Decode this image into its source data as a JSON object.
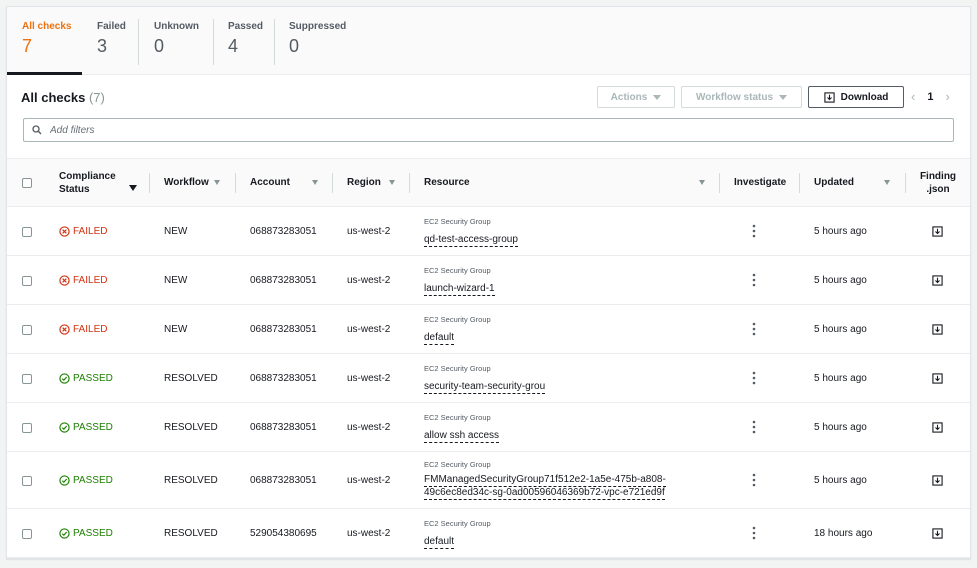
{
  "summary": {
    "tabs": [
      {
        "label": "All checks",
        "value": "7"
      },
      {
        "label": "Failed",
        "value": "3"
      },
      {
        "label": "Unknown",
        "value": "0"
      },
      {
        "label": "Passed",
        "value": "4"
      },
      {
        "label": "Suppressed",
        "value": "0"
      }
    ]
  },
  "header": {
    "title": "All checks",
    "count": "(7)",
    "actions_label": "Actions",
    "workflow_status_label": "Workflow status",
    "download_label": "Download",
    "page": "1"
  },
  "filter": {
    "placeholder": "Add filters"
  },
  "columns": {
    "compliance_status": [
      "Compliance",
      "Status"
    ],
    "workflow": "Workflow",
    "account": "Account",
    "region": "Region",
    "resource": "Resource",
    "investigate": "Investigate",
    "updated": "Updated",
    "finding_json": [
      "Finding",
      ".json"
    ]
  },
  "rows": [
    {
      "status": "FAILED",
      "workflow": "NEW",
      "account": "068873283051",
      "region": "us-west-2",
      "resource_type": "EC2 Security Group",
      "resource": [
        "qd-test-access-group"
      ],
      "updated": "5 hours ago"
    },
    {
      "status": "FAILED",
      "workflow": "NEW",
      "account": "068873283051",
      "region": "us-west-2",
      "resource_type": "EC2 Security Group",
      "resource": [
        "launch-wizard-1"
      ],
      "updated": "5 hours ago"
    },
    {
      "status": "FAILED",
      "workflow": "NEW",
      "account": "068873283051",
      "region": "us-west-2",
      "resource_type": "EC2 Security Group",
      "resource": [
        "default"
      ],
      "updated": "5 hours ago"
    },
    {
      "status": "PASSED",
      "workflow": "RESOLVED",
      "account": "068873283051",
      "region": "us-west-2",
      "resource_type": "EC2 Security Group",
      "resource": [
        "security-team-security-grou"
      ],
      "updated": "5 hours ago"
    },
    {
      "status": "PASSED",
      "workflow": "RESOLVED",
      "account": "068873283051",
      "region": "us-west-2",
      "resource_type": "EC2 Security Group",
      "resource": [
        "allow ssh access"
      ],
      "updated": "5 hours ago"
    },
    {
      "status": "PASSED",
      "workflow": "RESOLVED",
      "account": "068873283051",
      "region": "us-west-2",
      "resource_type": "EC2 Security Group",
      "resource": [
        "FMManagedSecurityGroup71f512e2-1a5e-475b-a808-",
        "49c6ec8ed34c-sg-0ad00596046369b72-vpc-e721ed9f"
      ],
      "updated": "5 hours ago"
    },
    {
      "status": "PASSED",
      "workflow": "RESOLVED",
      "account": "529054380695",
      "region": "us-west-2",
      "resource_type": "EC2 Security Group",
      "resource": [
        "default"
      ],
      "updated": "18 hours ago"
    }
  ],
  "icons": {
    "failed": "x-circle-icon",
    "passed": "check-circle-icon",
    "download": "download-icon",
    "search": "search-icon",
    "investigate": "vertical-dots-icon"
  },
  "colors": {
    "accent": "#ec7211",
    "failed": "#d13212",
    "passed": "#1d8102"
  }
}
